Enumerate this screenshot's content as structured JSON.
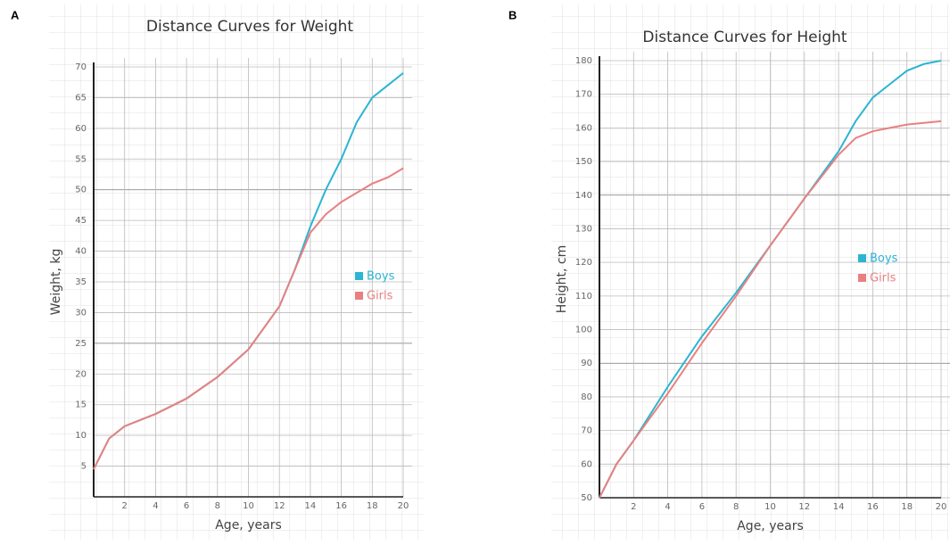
{
  "chart_data": [
    {
      "type": "line",
      "panel_label": "A",
      "title": "Distance Curves for Weight",
      "x_label": "Age, years",
      "y_label": "Weight, kg",
      "x": [
        0,
        0.5,
        1,
        2,
        4,
        6,
        8,
        10,
        12,
        13,
        14,
        15,
        16,
        17,
        18,
        19,
        20
      ],
      "series": [
        {
          "name": "Boys",
          "color": "#2bb5d3",
          "values": [
            4.5,
            7,
            9.5,
            11.5,
            13.5,
            16,
            19.5,
            24,
            31,
            37,
            44,
            50,
            55,
            61,
            65,
            67,
            69
          ]
        },
        {
          "name": "Girls",
          "color": "#e98080",
          "values": [
            4.5,
            7,
            9.5,
            11.5,
            13.5,
            16,
            19.5,
            24,
            31,
            37,
            43,
            46,
            48,
            49.5,
            51,
            52,
            53.5
          ]
        }
      ],
      "xlim": [
        0,
        20
      ],
      "xticks": [
        2,
        4,
        6,
        8,
        10,
        12,
        14,
        16,
        18,
        20
      ],
      "ylim": [
        0,
        70
      ],
      "yticks": [
        5,
        10,
        15,
        20,
        25,
        30,
        35,
        40,
        45,
        50,
        55,
        60,
        65,
        70
      ],
      "grid": true
    },
    {
      "type": "line",
      "panel_label": "B",
      "title": "Distance Curves for Height",
      "x_label": "Age, years",
      "y_label": "Height, cm",
      "x": [
        0,
        1,
        2,
        4,
        6,
        8,
        10,
        12,
        14,
        15,
        16,
        17,
        18,
        19,
        20
      ],
      "series": [
        {
          "name": "Boys",
          "color": "#2bb5d3",
          "values": [
            50,
            60,
            67,
            83,
            98,
            111,
            125,
            139,
            153,
            162,
            169,
            173,
            177,
            179,
            180
          ]
        },
        {
          "name": "Girls",
          "color": "#e98080",
          "values": [
            50,
            60,
            67,
            81,
            96,
            110,
            125,
            139,
            152,
            157,
            159,
            160,
            161,
            161.5,
            162
          ]
        }
      ],
      "xlim": [
        0,
        20
      ],
      "xticks": [
        2,
        4,
        6,
        8,
        10,
        12,
        14,
        16,
        18,
        20
      ],
      "ylim": [
        50,
        180
      ],
      "yticks": [
        50,
        60,
        70,
        80,
        90,
        100,
        110,
        120,
        130,
        140,
        150,
        160,
        170,
        180
      ],
      "grid": true
    }
  ]
}
